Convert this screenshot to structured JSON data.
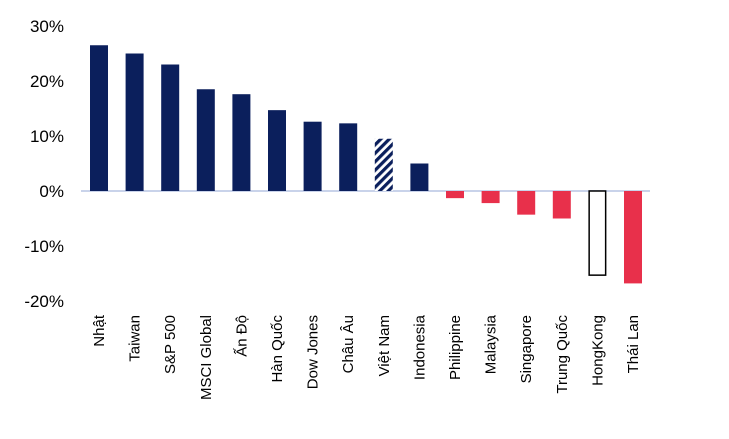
{
  "chart_data": {
    "type": "bar",
    "categories": [
      "Nhật",
      "Taiwan",
      "S&P 500",
      "MSCI Global",
      "Ấn Độ",
      "Hàn Quốc",
      "Dow Jones",
      "Châu Âu",
      "Việt Nam",
      "Indonesia",
      "Philippine",
      "Malaysia",
      "Singapore",
      "Trung Quốc",
      "HongKong",
      "Thái Lan"
    ],
    "values": [
      26.5,
      25.0,
      23.0,
      18.5,
      17.6,
      14.7,
      12.6,
      12.3,
      9.5,
      5.0,
      -1.3,
      -2.2,
      -4.3,
      -5.0,
      -15.3,
      -16.8
    ],
    "bar_styles": [
      "solid",
      "solid",
      "solid",
      "solid",
      "solid",
      "solid",
      "solid",
      "solid",
      "hatched",
      "solid",
      "solid",
      "solid",
      "solid",
      "solid",
      "outline",
      "solid"
    ],
    "ylim": [
      -20,
      30
    ],
    "yticks": [
      30,
      20,
      10,
      0,
      -10,
      -20
    ],
    "ytick_labels": [
      "30%",
      "20%",
      "10%",
      "0%",
      "-10%",
      "-20%"
    ],
    "title": "",
    "xlabel": "",
    "ylabel": "",
    "colors": {
      "positive": "#0b1f5c",
      "negative": "#e8304b",
      "outline": "#000000",
      "zero_line": "#c9d3ea"
    }
  }
}
